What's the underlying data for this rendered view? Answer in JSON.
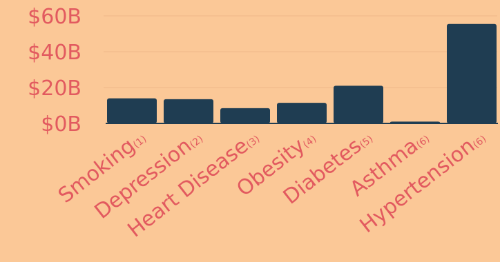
{
  "chart_data": {
    "type": "bar",
    "categories": [
      "Smoking",
      "Depression",
      "Heart Disease",
      "Obesity",
      "Diabetes",
      "Asthma",
      "Hypertension"
    ],
    "category_notes": [
      "(1)",
      "(2)",
      "(3)",
      "(4)",
      "(5)",
      "(6)",
      "(6)"
    ],
    "values": [
      14,
      13.5,
      8.5,
      11.5,
      21,
      1,
      55.5
    ],
    "y_ticks": [
      "$0B",
      "$20B",
      "$40B",
      "$60B"
    ],
    "y_tick_values": [
      0,
      20,
      40,
      60
    ],
    "ylim": [
      0,
      60
    ],
    "grid": true,
    "title": "",
    "xlabel": "",
    "ylabel": ""
  },
  "colors": {
    "background": "#fbc897",
    "bar": "#1f3d52",
    "label": "#e25a5f"
  }
}
